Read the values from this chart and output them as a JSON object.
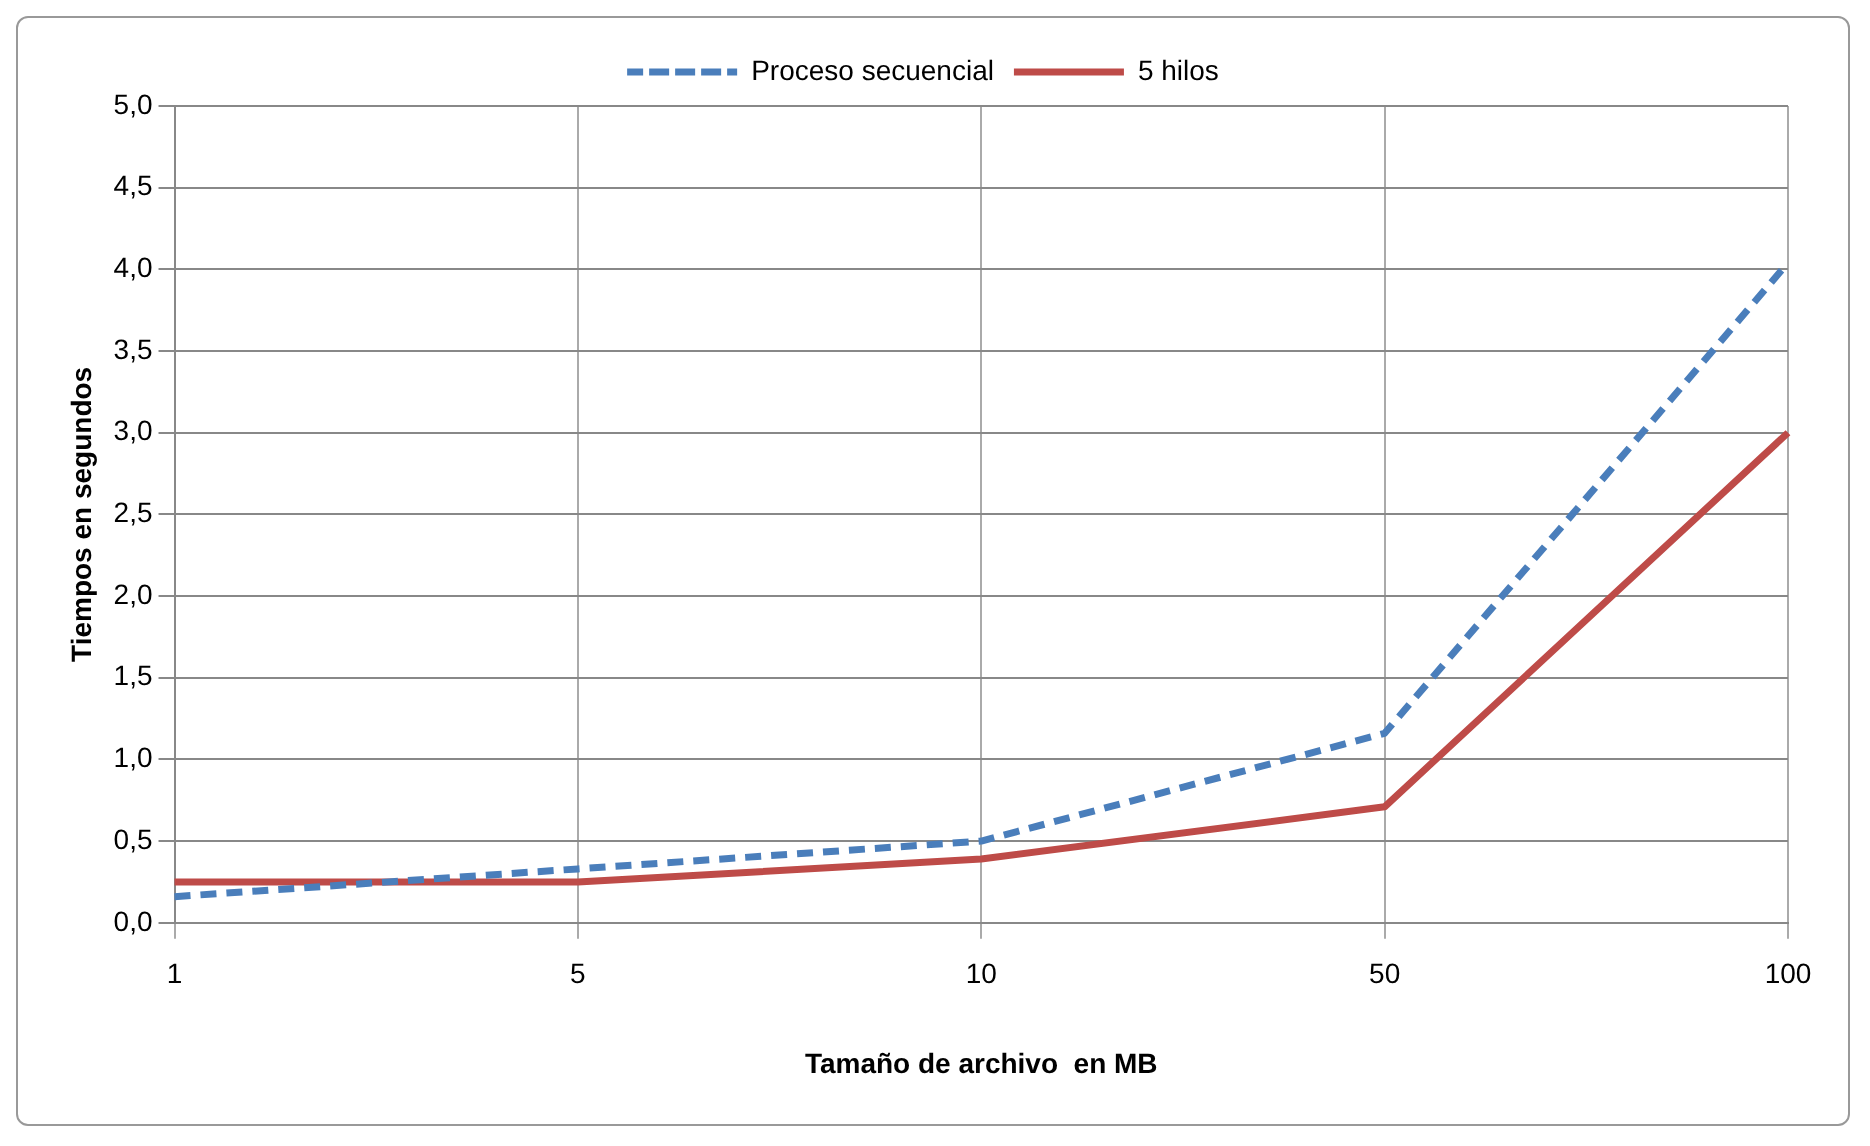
{
  "chart_data": {
    "type": "line",
    "xlabel": "Tamaño de archivo  en MB",
    "ylabel": "Tiempos en segundos",
    "categories": [
      "1",
      "5",
      "10",
      "50",
      "100"
    ],
    "series": [
      {
        "name": "Proceso secuencial",
        "color": "#4a7ebb",
        "line_style": "dashed",
        "values": [
          0.16,
          0.33,
          0.5,
          1.16,
          4.04
        ]
      },
      {
        "name": "5 hilos",
        "color": "#be4b48",
        "line_style": "solid",
        "values": [
          0.25,
          0.25,
          0.39,
          0.71,
          3.0
        ]
      }
    ],
    "ylim": [
      0,
      5
    ],
    "yticks": [
      {
        "value": 0,
        "label": "0,0"
      },
      {
        "value": 0.5,
        "label": "0,5"
      },
      {
        "value": 1,
        "label": "1,0"
      },
      {
        "value": 1.5,
        "label": "1,5"
      },
      {
        "value": 2,
        "label": "2,0"
      },
      {
        "value": 2.5,
        "label": "2,5"
      },
      {
        "value": 3,
        "label": "3,0"
      },
      {
        "value": 3.5,
        "label": "3,5"
      },
      {
        "value": 4,
        "label": "4,0"
      },
      {
        "value": 4.5,
        "label": "4,5"
      },
      {
        "value": 5,
        "label": "5,0"
      }
    ],
    "grid": true,
    "legend": "top",
    "marker": "none"
  }
}
